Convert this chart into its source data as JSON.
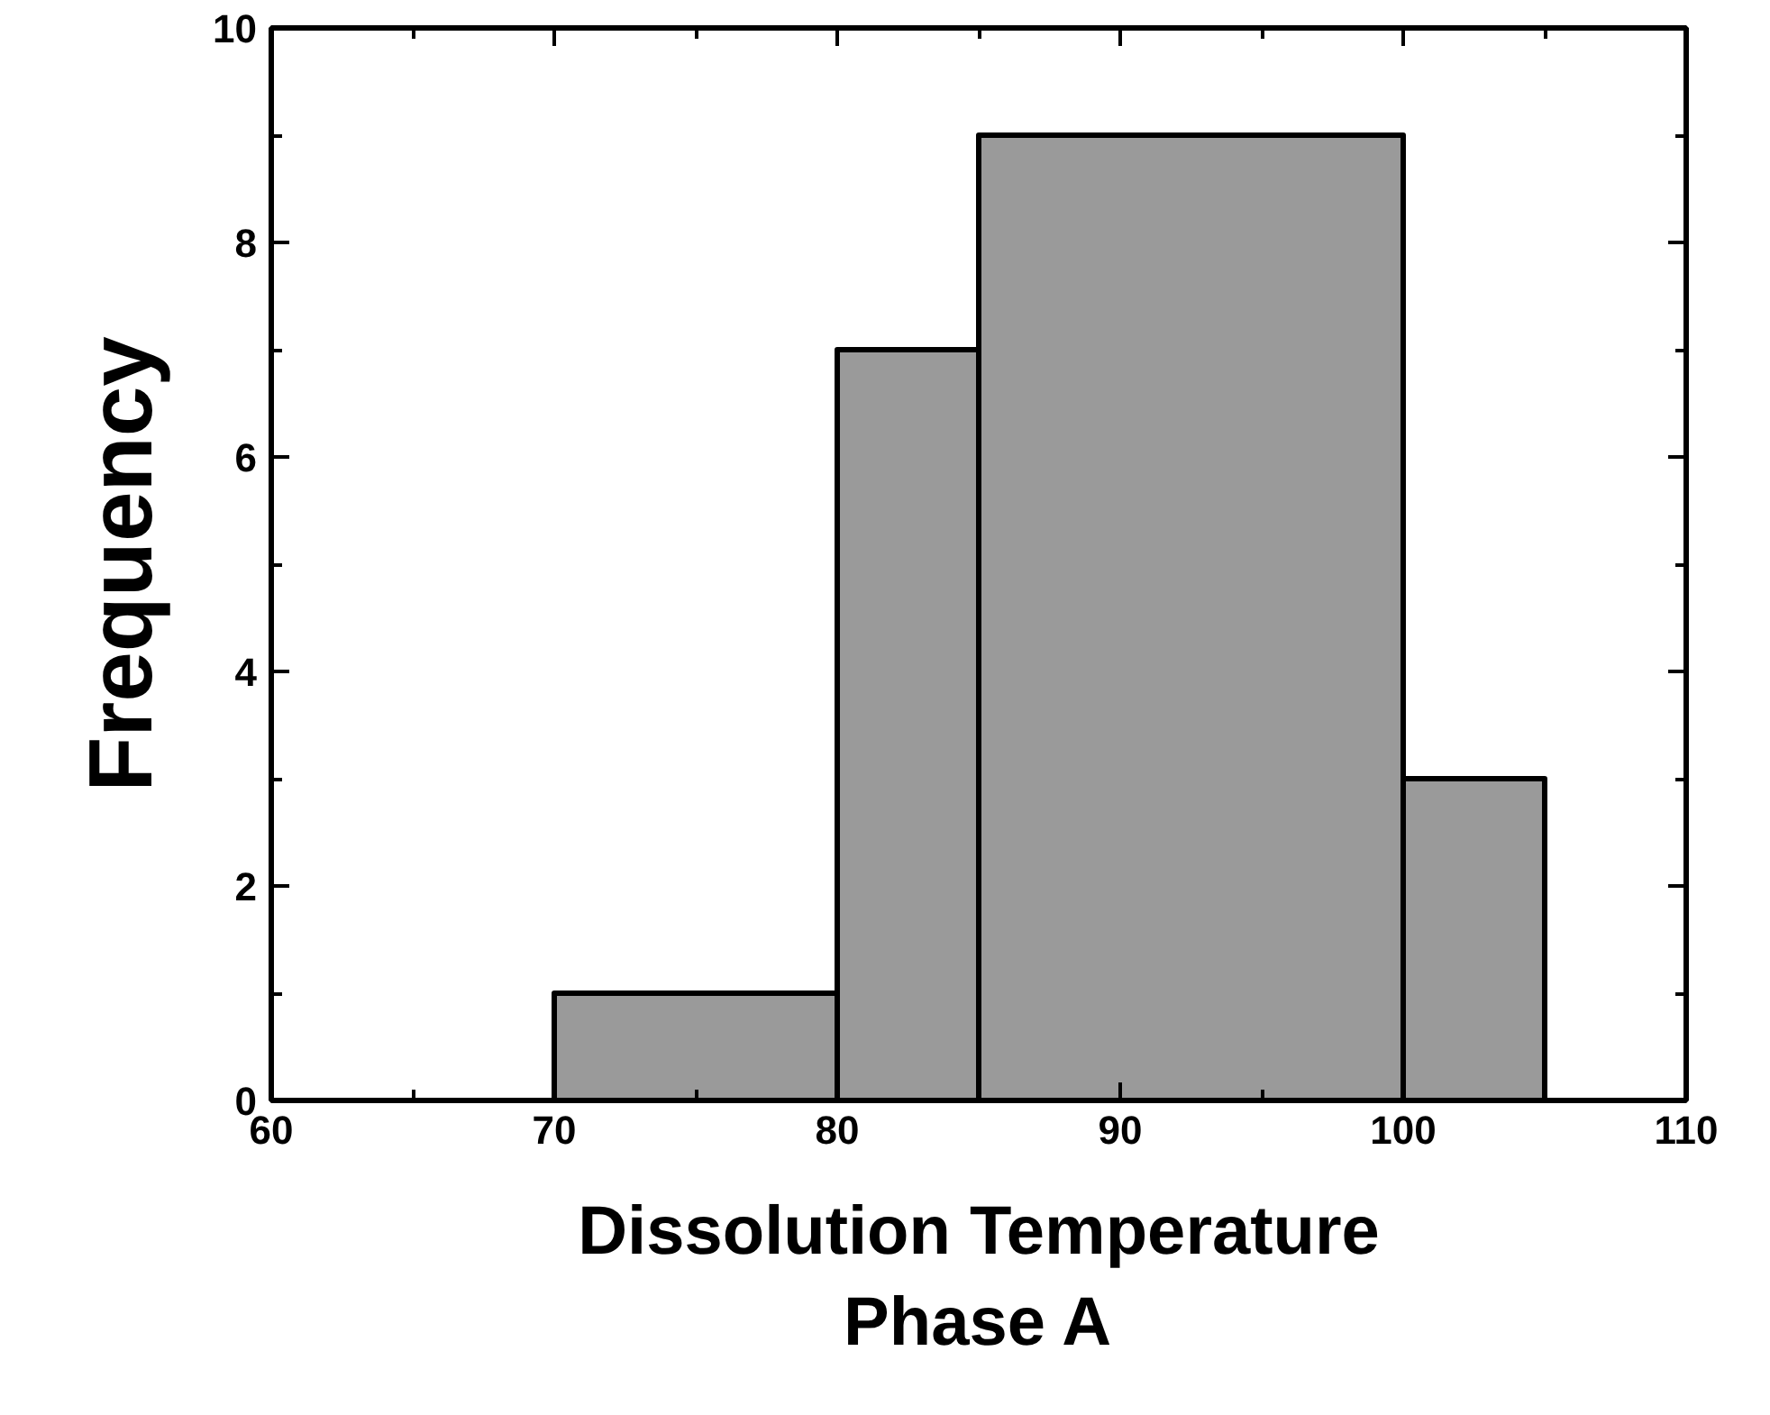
{
  "chart_data": {
    "type": "histogram",
    "xlabel": "Dissolution Temperature\nPhase A",
    "ylabel": "Frequency",
    "bins": [
      70,
      80,
      85,
      100,
      105
    ],
    "values": [
      1,
      7,
      9,
      3
    ],
    "color": "#9a9a9a",
    "xlim": [
      60,
      110
    ],
    "xticks": [
      60,
      70,
      80,
      90,
      100,
      110
    ],
    "ylim": [
      0,
      10
    ],
    "yticks": [
      0,
      2,
      4,
      6,
      8,
      10
    ],
    "grid": false
  }
}
